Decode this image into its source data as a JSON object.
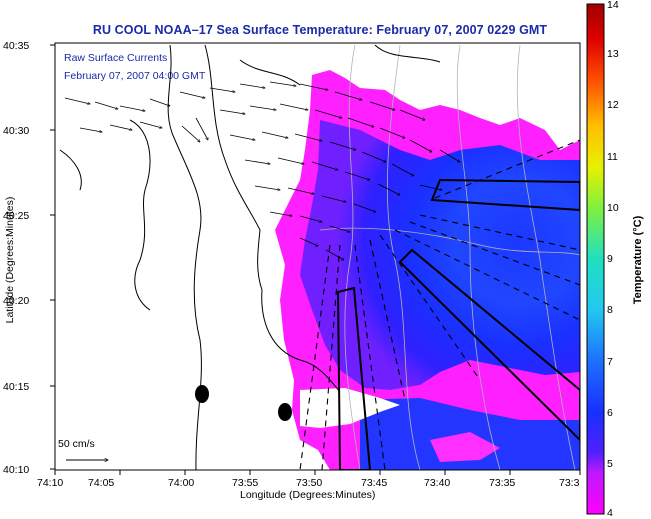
{
  "title": "RU COOL  NOAA–17  Sea Surface Temperature:  February 07, 2007 0229 GMT",
  "inset": {
    "line1": "Raw Surface Currents",
    "line2": "February 07, 2007 04:00 GMT"
  },
  "axes": {
    "ylabel": "Latitude (Degrees:Minutes)",
    "xlabel": "Longitude (Degrees:Minutes)",
    "y_ticks": [
      "40:35",
      "40:30",
      "40:25",
      "40:20",
      "40:15",
      "40:10"
    ],
    "x_ticks": [
      "74:10",
      "74:05",
      "74:00",
      "73:55",
      "73:50",
      "73:45",
      "73:40",
      "73:35",
      "73:3"
    ]
  },
  "colorbar": {
    "label": "Temperature (°C)",
    "ticks": [
      "14",
      "13",
      "12",
      "11",
      "10",
      "9",
      "8",
      "7",
      "6",
      "5",
      "4"
    ],
    "min": 4,
    "max": 14,
    "colors": {
      "min": "#ff00ff",
      "low": "#1e28ff",
      "mid": "#22d2d2",
      "high": "#f0f000",
      "max": "#a00000"
    }
  },
  "scale_arrow": {
    "label": "50 cm/s"
  },
  "colors": {
    "title": "#1a2aa8",
    "coast": "#000000",
    "bathymetry": "#b4b4b4"
  }
}
